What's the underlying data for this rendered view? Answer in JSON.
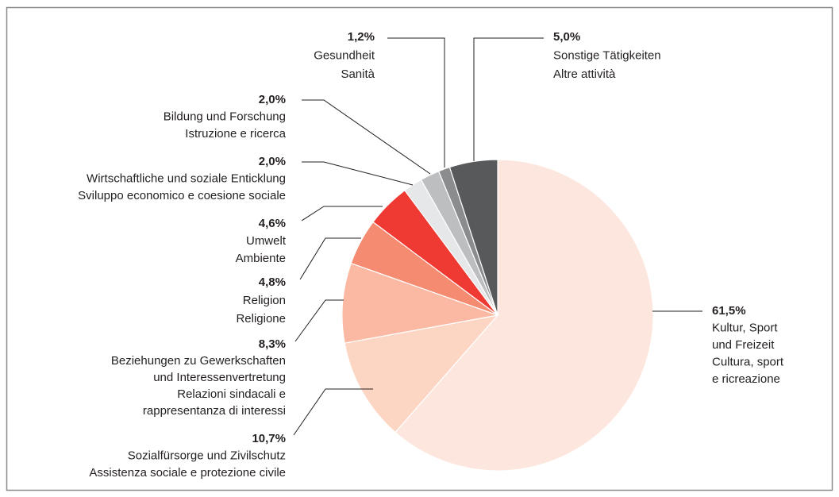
{
  "chart_data": {
    "type": "pie",
    "categories": [
      [
        "Kultur, Sport",
        "und Freizeit",
        "Cultura, sport",
        "e ricreazione"
      ],
      [
        "Sozialfürsorge und Zivilschutz",
        "Assistenza sociale e protezione civile"
      ],
      [
        "Beziehungen zu Gewerkschaften",
        "und Interessenvertretung",
        "Relazioni sindacali e",
        "rappresentanza di interessi"
      ],
      [
        "Religion",
        "Religione"
      ],
      [
        "Umwelt",
        "Ambiente"
      ],
      [
        "Wirtschaftliche und soziale Enticklung",
        "Sviluppo economico e coesione sociale"
      ],
      [
        "Bildung und Forschung",
        "Istruzione e ricerca"
      ],
      [
        "Gesundheit",
        "Sanità"
      ],
      [
        "Sonstige Tätigkeiten",
        "Altre attività"
      ]
    ],
    "values": [
      61.5,
      10.7,
      8.3,
      4.8,
      4.6,
      2.0,
      2.0,
      1.2,
      5.0
    ],
    "value_labels": [
      "61,5%",
      "10,7%",
      "8,3%",
      "4,8%",
      "4,6%",
      "2,0%",
      "2,0%",
      "1,2%",
      "5,0%"
    ],
    "colors": [
      "#fde6dd",
      "#fdd5c3",
      "#fbb9a3",
      "#f58b70",
      "#ee3a32",
      "#e6e7e8",
      "#bcbec0",
      "#8a8c8e",
      "#58595b"
    ]
  }
}
